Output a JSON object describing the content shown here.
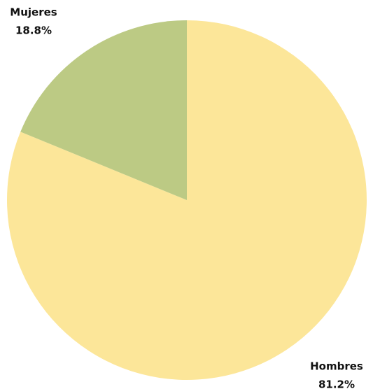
{
  "chart_data": {
    "type": "pie",
    "categories": [
      "Hombres",
      "Mujeres"
    ],
    "values": [
      81.2,
      18.8
    ],
    "value_labels": [
      "81.2%",
      "18.8%"
    ],
    "colors": [
      "#fce699",
      "#bcca84"
    ],
    "start_angle": 90,
    "direction": "clockwise"
  }
}
